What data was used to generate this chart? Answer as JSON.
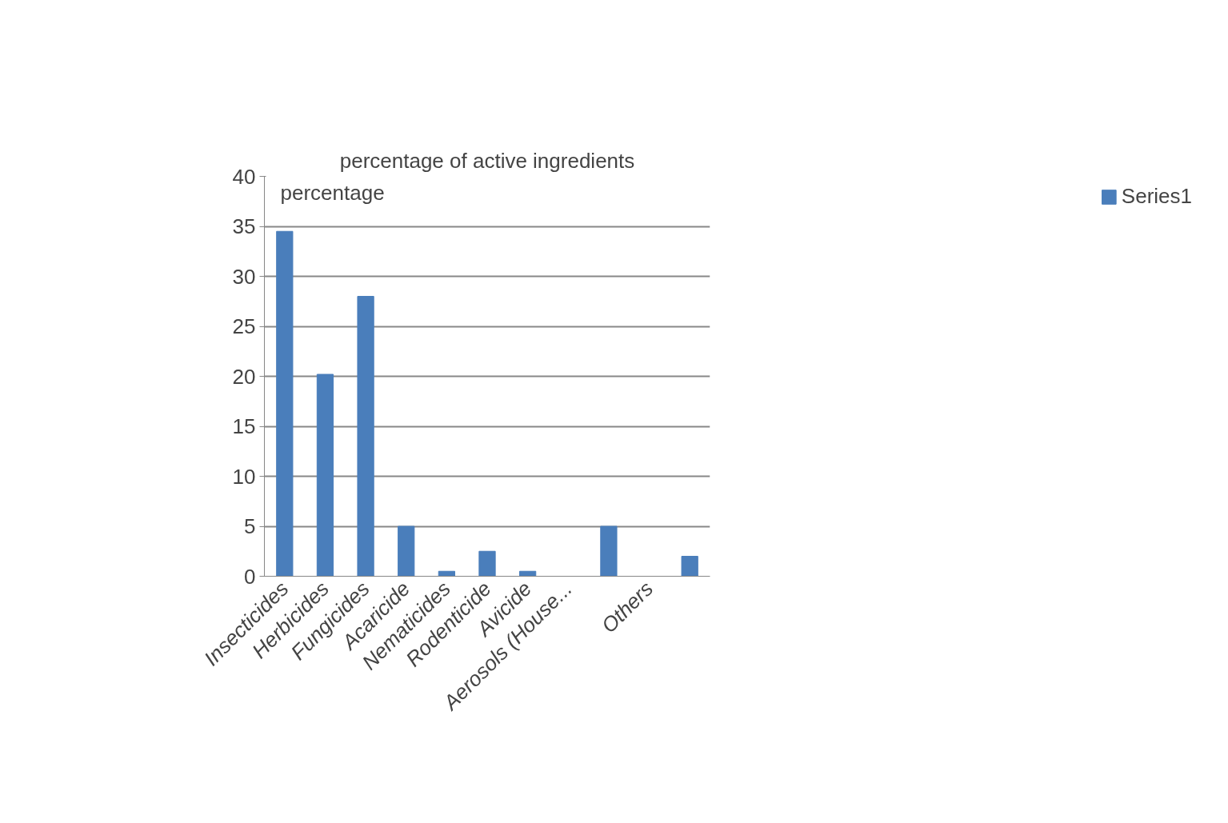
{
  "chart_data": {
    "type": "bar",
    "title": "percentage of active ingredients",
    "ylabel": "percentage",
    "categories": [
      "Insecticides",
      "Herbicides",
      "Fungicides",
      "Acaricide",
      "Nematicides",
      "Rodenticide",
      "Avicide",
      "Aerosols (House...",
      null,
      "Others",
      null
    ],
    "series": [
      {
        "name": "Series1",
        "color": "#4a7ebb",
        "values": [
          34.5,
          20.2,
          28.0,
          5.0,
          0.5,
          2.5,
          0.5,
          0,
          5.0,
          0,
          2.0
        ]
      }
    ],
    "ylim": [
      0,
      40
    ],
    "yticks": [
      0,
      5,
      10,
      15,
      20,
      25,
      30,
      35,
      40
    ],
    "grid": "y",
    "legend": "right"
  }
}
